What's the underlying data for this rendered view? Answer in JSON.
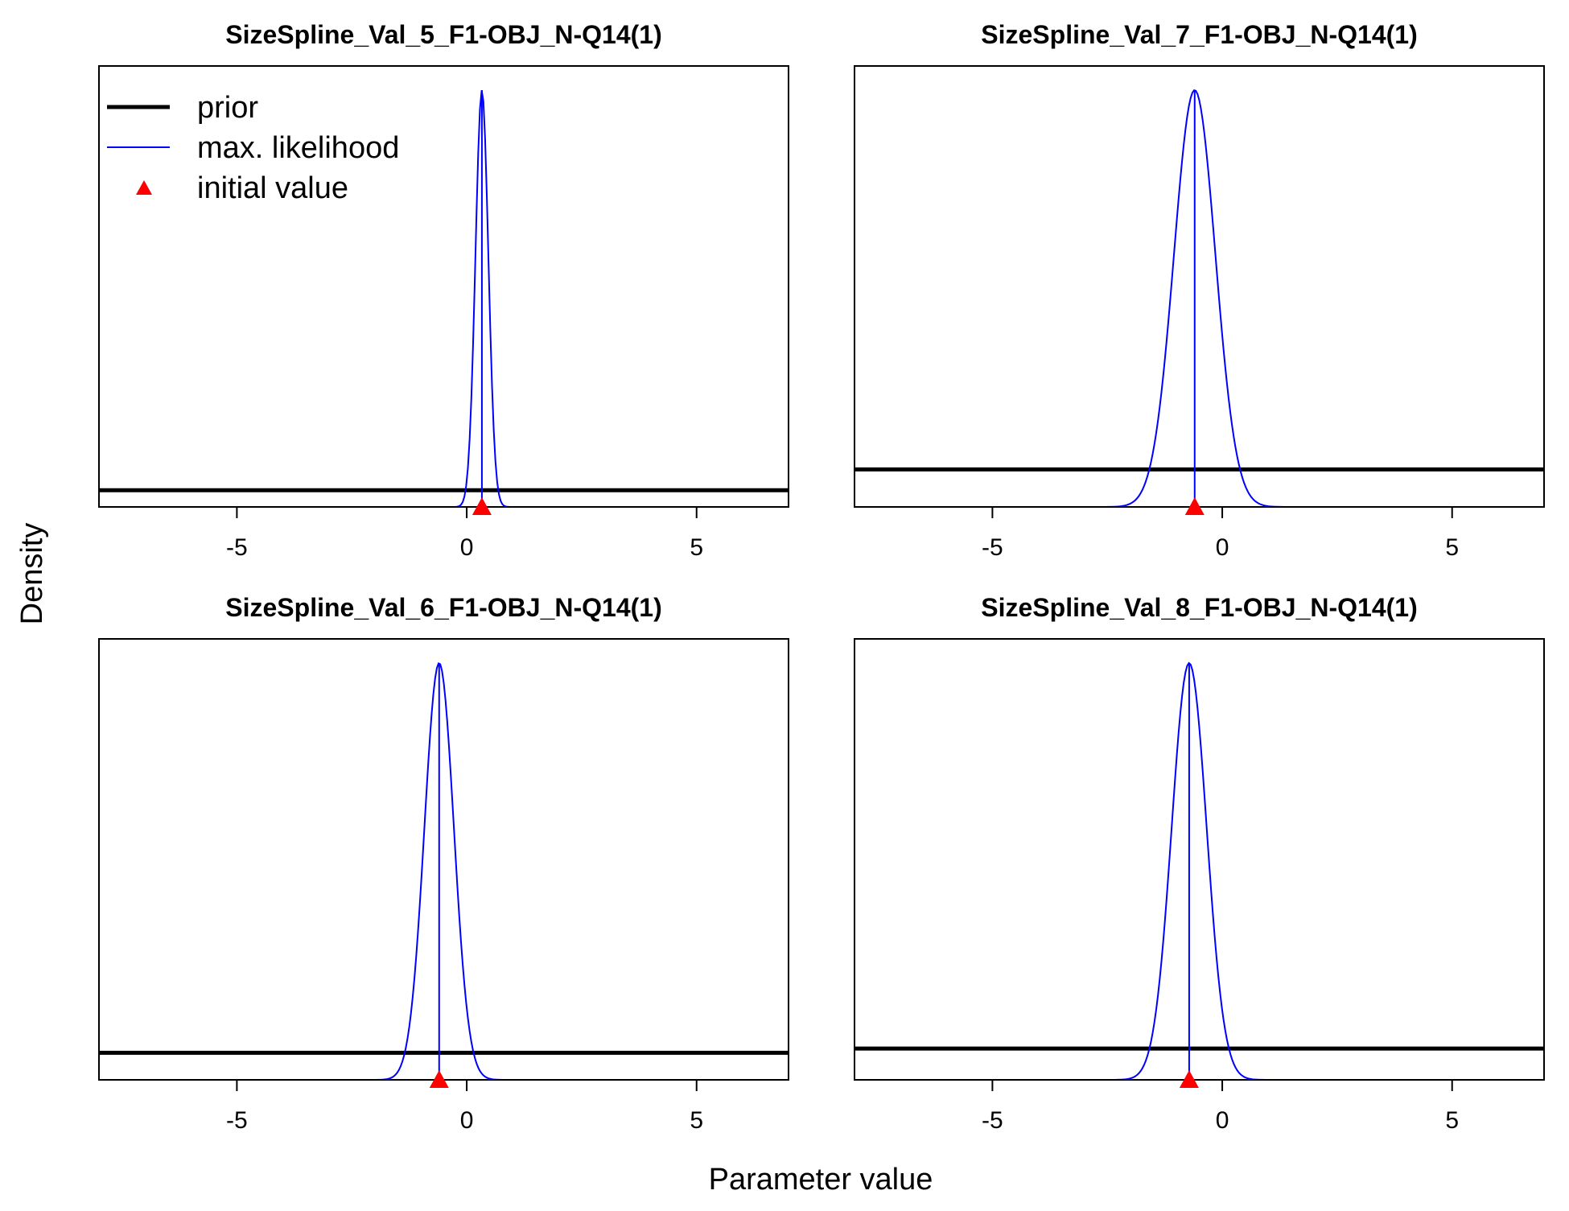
{
  "figure": {
    "xlabel": "Parameter value",
    "ylabel": "Density"
  },
  "legend": {
    "items": [
      {
        "label": "prior",
        "color": "#000000",
        "style": "thick-line"
      },
      {
        "label": "max. likelihood",
        "color": "#0000ff",
        "style": "thin-line"
      },
      {
        "label": "initial value",
        "color": "#ff0000",
        "style": "triangle"
      }
    ],
    "placement": "top-left of first panel"
  },
  "chart_data": [
    {
      "type": "line",
      "title": "SizeSpline_Val_5_F1-OBJ_N-Q14(1)",
      "xlim": [
        -8,
        7
      ],
      "xticks": [
        -5,
        0,
        5
      ],
      "tick_labels": [
        "-5",
        "0",
        "5"
      ],
      "prior_density_fraction": 0.04,
      "mle": 0.33,
      "sd": 0.14,
      "initial_value": 0.33,
      "series": [
        {
          "name": "prior",
          "color": "#000000"
        },
        {
          "name": "max. likelihood",
          "color": "#0000ff"
        },
        {
          "name": "initial value",
          "color": "#ff0000"
        }
      ]
    },
    {
      "type": "line",
      "title": "SizeSpline_Val_7_F1-OBJ_N-Q14(1)",
      "xlim": [
        -8,
        7
      ],
      "xticks": [
        -5,
        0,
        5
      ],
      "tick_labels": [
        "-5",
        "0",
        "5"
      ],
      "prior_density_fraction": 0.09,
      "mle": -0.6,
      "sd": 0.45,
      "initial_value": -0.6,
      "series": [
        {
          "name": "prior",
          "color": "#000000"
        },
        {
          "name": "max. likelihood",
          "color": "#0000ff"
        },
        {
          "name": "initial value",
          "color": "#ff0000"
        }
      ]
    },
    {
      "type": "line",
      "title": "SizeSpline_Val_6_F1-OBJ_N-Q14(1)",
      "xlim": [
        -8,
        7
      ],
      "xticks": [
        -5,
        0,
        5
      ],
      "tick_labels": [
        "-5",
        "0",
        "5"
      ],
      "prior_density_fraction": 0.065,
      "mle": -0.6,
      "sd": 0.32,
      "initial_value": -0.6,
      "series": [
        {
          "name": "prior",
          "color": "#000000"
        },
        {
          "name": "max. likelihood",
          "color": "#0000ff"
        },
        {
          "name": "initial value",
          "color": "#ff0000"
        }
      ]
    },
    {
      "type": "line",
      "title": "SizeSpline_Val_8_F1-OBJ_N-Q14(1)",
      "xlim": [
        -8,
        7
      ],
      "xticks": [
        -5,
        0,
        5
      ],
      "tick_labels": [
        "-5",
        "0",
        "5"
      ],
      "prior_density_fraction": 0.075,
      "mle": -0.72,
      "sd": 0.38,
      "initial_value": -0.72,
      "series": [
        {
          "name": "prior",
          "color": "#000000"
        },
        {
          "name": "max. likelihood",
          "color": "#0000ff"
        },
        {
          "name": "initial value",
          "color": "#ff0000"
        }
      ]
    }
  ]
}
